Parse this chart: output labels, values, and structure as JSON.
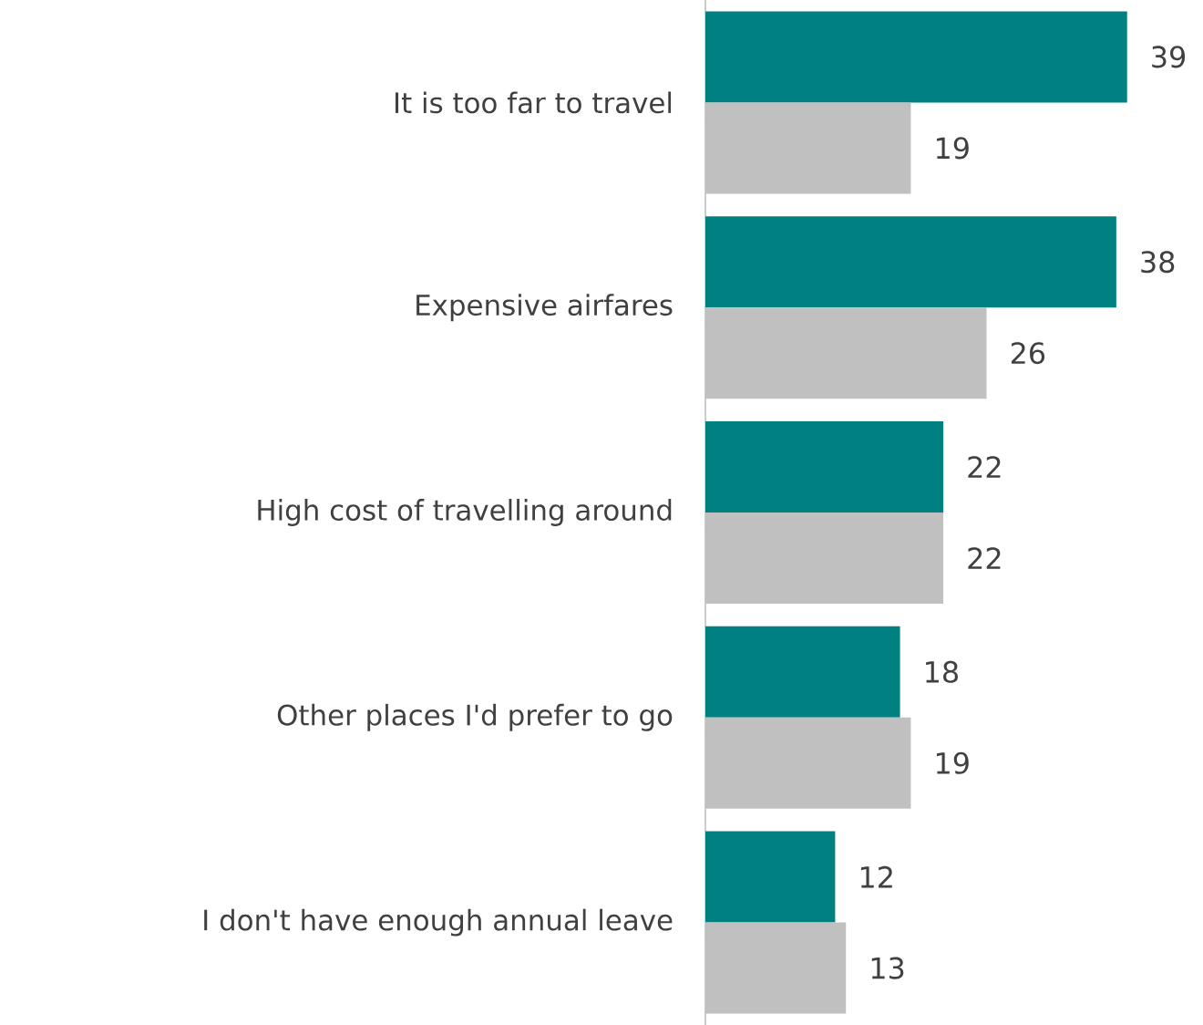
{
  "chart_data": {
    "type": "bar",
    "orientation": "horizontal",
    "categories": [
      "It is too far to travel",
      "Expensive airfares",
      "High cost of travelling around",
      "Other places I'd prefer to go",
      "I don't have enough annual leave"
    ],
    "series": [
      {
        "color": "#008080",
        "values": [
          39,
          38,
          22,
          18,
          12
        ]
      },
      {
        "color": "#c0c0c0",
        "values": [
          19,
          26,
          22,
          19,
          13
        ]
      }
    ],
    "data_labels": true
  }
}
